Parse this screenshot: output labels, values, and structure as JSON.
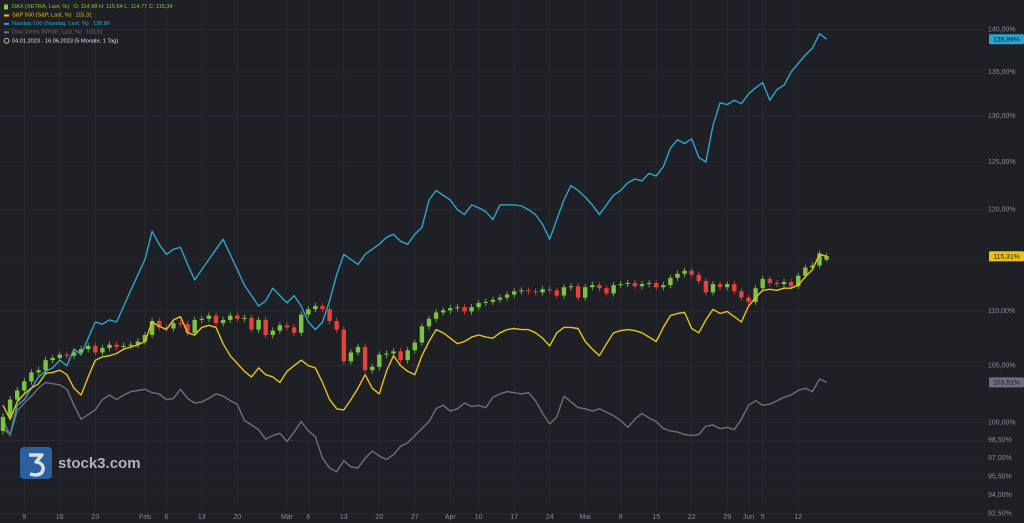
{
  "chart_data": {
    "type": "candlestick",
    "log": true,
    "grid": true,
    "ylim": [
      92.8,
      143.6
    ],
    "yticks": [
      {
        "value": 140,
        "label": "140,00%"
      },
      {
        "value": 135,
        "label": "135,00%"
      },
      {
        "value": 130,
        "label": "130,00%"
      },
      {
        "value": 125,
        "label": "125,00%"
      },
      {
        "value": 120,
        "label": "120,00%"
      },
      {
        "value": 115,
        "label": "115,00%"
      },
      {
        "value": 110,
        "label": "110,00%"
      },
      {
        "value": 105,
        "label": "105,00%"
      },
      {
        "value": 100,
        "label": "100,00%"
      },
      {
        "value": 98.5,
        "label": "98,50%"
      },
      {
        "value": 97,
        "label": "97,00%"
      },
      {
        "value": 95.5,
        "label": "95,50%"
      },
      {
        "value": 94,
        "label": "94,00%"
      },
      {
        "value": 92.5,
        "label": "92,50%"
      }
    ],
    "date_range": "04.01.2023 - 16.06.2023  (5 Monate, 1 Tag)",
    "watermark": "stock3.com",
    "categories": [
      null,
      null,
      null,
      "9",
      null,
      null,
      null,
      null,
      "16",
      null,
      null,
      null,
      null,
      "23",
      null,
      null,
      null,
      null,
      null,
      null,
      "Feb",
      null,
      null,
      "6",
      null,
      null,
      null,
      null,
      "13",
      null,
      null,
      null,
      null,
      "20",
      null,
      null,
      null,
      null,
      null,
      null,
      "Mär",
      null,
      null,
      "6",
      null,
      null,
      null,
      null,
      "13",
      null,
      null,
      null,
      null,
      "20",
      null,
      null,
      null,
      null,
      "27",
      null,
      null,
      null,
      null,
      "Apr",
      null,
      null,
      null,
      "10",
      null,
      null,
      null,
      null,
      "17",
      null,
      null,
      null,
      null,
      "24",
      null,
      null,
      null,
      null,
      "Mai",
      null,
      null,
      null,
      null,
      "8",
      null,
      null,
      null,
      null,
      "15",
      null,
      null,
      null,
      null,
      "22",
      null,
      null,
      null,
      null,
      "29",
      null,
      null,
      "Jun",
      null,
      "5",
      null,
      null,
      null,
      null,
      "12",
      null,
      null,
      null,
      null
    ],
    "candles": {
      "name": "DAX (XETRA, Last, %)",
      "ohlc_text": "O: 114,98  H: 115,64  L: 114,77  C: 115,34",
      "legend_color": "#8cc63f",
      "color_up": "#7dc242",
      "color_down": "#e8403a",
      "open": [
        99.3,
        100.5,
        102.0,
        102.8,
        103.6,
        104.4,
        104.6,
        105.5,
        105.7,
        106.0,
        105.9,
        106.2,
        106.5,
        106.8,
        106.2,
        106.6,
        106.9,
        106.7,
        106.8,
        106.9,
        107.2,
        107.8,
        109.1,
        108.5,
        108.4,
        108.9,
        108.8,
        108.0,
        109.2,
        109.3,
        109.6,
        108.9,
        109.2,
        109.6,
        109.3,
        109.4,
        108.3,
        109.2,
        107.8,
        108.2,
        108.7,
        108.5,
        108.0,
        109.7,
        110.2,
        110.5,
        110.2,
        109.1,
        108.3,
        105.4,
        106.2,
        106.7,
        104.6,
        104.9,
        106.0,
        106.1,
        106.3,
        105.5,
        106.4,
        107.1,
        108.6,
        109.3,
        109.9,
        110.1,
        110.3,
        110.4,
        110.0,
        110.4,
        110.8,
        110.9,
        111.1,
        111.3,
        111.6,
        111.9,
        112.0,
        111.9,
        111.8,
        112.1,
        112.0,
        111.5,
        112.3,
        112.4,
        111.3,
        112.3,
        112.5,
        112.2,
        111.7,
        112.5,
        112.6,
        112.7,
        112.4,
        112.6,
        112.7,
        112.3,
        112.5,
        113.2,
        113.6,
        113.9,
        113.5,
        112.9,
        111.8,
        112.6,
        112.3,
        112.6,
        111.9,
        111.3,
        110.9,
        112.2,
        113.1,
        112.7,
        112.6,
        112.8,
        112.4,
        113.4,
        114.2,
        114.4,
        114.98
      ],
      "high": [
        100.8,
        102.3,
        103.1,
        103.9,
        104.7,
        104.9,
        105.8,
        106.0,
        106.3,
        106.3,
        106.5,
        106.8,
        107.1,
        107.1,
        106.9,
        107.2,
        107.2,
        107.1,
        107.2,
        107.5,
        108.1,
        109.4,
        109.4,
        108.8,
        109.2,
        109.2,
        109.1,
        109.5,
        109.6,
        109.9,
        109.9,
        109.5,
        109.9,
        109.9,
        109.7,
        109.7,
        109.5,
        109.5,
        108.5,
        109.0,
        109.0,
        108.8,
        110.0,
        110.5,
        110.8,
        110.8,
        110.5,
        109.4,
        108.6,
        106.5,
        107.0,
        107.0,
        105.2,
        106.3,
        106.4,
        106.6,
        106.6,
        106.7,
        107.4,
        108.9,
        109.6,
        110.2,
        110.4,
        110.6,
        110.7,
        110.7,
        110.7,
        111.1,
        111.2,
        111.4,
        111.6,
        111.9,
        112.2,
        112.3,
        112.3,
        112.2,
        112.4,
        112.4,
        112.3,
        112.6,
        112.7,
        112.7,
        112.6,
        112.8,
        112.8,
        112.5,
        112.8,
        112.9,
        113.0,
        113.0,
        112.9,
        113.0,
        113.0,
        112.8,
        113.5,
        113.9,
        114.2,
        114.2,
        113.8,
        113.2,
        112.9,
        112.9,
        112.9,
        112.9,
        112.2,
        111.6,
        112.5,
        113.4,
        113.4,
        113.0,
        113.1,
        113.1,
        113.7,
        114.5,
        114.7,
        115.9,
        115.64
      ],
      "low": [
        99.0,
        100.2,
        101.7,
        102.5,
        103.3,
        104.1,
        104.3,
        105.2,
        105.4,
        105.6,
        105.6,
        105.9,
        106.2,
        105.9,
        105.9,
        106.3,
        106.4,
        106.4,
        106.5,
        106.6,
        106.9,
        107.5,
        108.2,
        108.1,
        108.1,
        108.5,
        107.7,
        107.7,
        108.9,
        109.0,
        108.6,
        108.6,
        108.9,
        109.0,
        109.0,
        108.0,
        108.0,
        107.5,
        107.5,
        107.9,
        108.2,
        107.7,
        107.7,
        109.4,
        109.9,
        109.9,
        108.8,
        108.0,
        105.1,
        105.1,
        105.9,
        104.3,
        104.3,
        104.6,
        105.7,
        105.8,
        105.2,
        105.2,
        106.1,
        106.8,
        108.3,
        109.0,
        109.6,
        109.8,
        110.0,
        109.7,
        109.7,
        110.1,
        110.5,
        110.6,
        110.8,
        111.0,
        111.3,
        111.6,
        111.6,
        111.5,
        111.5,
        111.7,
        111.2,
        111.2,
        112.0,
        111.0,
        111.0,
        112.0,
        111.9,
        111.4,
        111.4,
        112.2,
        112.3,
        112.1,
        112.1,
        112.3,
        112.0,
        112.0,
        112.2,
        112.9,
        113.3,
        113.2,
        112.6,
        111.5,
        111.5,
        112.0,
        112.0,
        111.6,
        111.0,
        110.6,
        110.6,
        111.9,
        112.4,
        112.3,
        112.3,
        112.1,
        112.1,
        113.1,
        113.9,
        114.1,
        114.77
      ],
      "close": [
        100.5,
        102.0,
        102.8,
        103.6,
        104.4,
        104.6,
        105.5,
        105.7,
        106.0,
        105.9,
        106.2,
        106.5,
        106.8,
        106.2,
        106.6,
        106.9,
        106.7,
        106.8,
        106.9,
        107.2,
        107.8,
        109.1,
        108.5,
        108.4,
        108.9,
        108.8,
        108.0,
        109.2,
        109.3,
        109.6,
        108.9,
        109.2,
        109.6,
        109.3,
        109.4,
        108.3,
        109.2,
        107.8,
        108.2,
        108.7,
        108.5,
        108.0,
        109.7,
        110.2,
        110.5,
        110.2,
        109.1,
        108.3,
        105.4,
        106.2,
        106.7,
        104.6,
        104.9,
        106.0,
        106.1,
        106.3,
        105.5,
        106.4,
        107.1,
        108.6,
        109.3,
        109.9,
        110.1,
        110.3,
        110.4,
        110.0,
        110.4,
        110.8,
        110.9,
        111.1,
        111.3,
        111.6,
        111.9,
        112.0,
        111.9,
        111.8,
        112.1,
        112.0,
        111.5,
        112.3,
        112.4,
        111.3,
        112.3,
        112.5,
        112.2,
        111.7,
        112.5,
        112.6,
        112.7,
        112.4,
        112.6,
        112.7,
        112.3,
        112.5,
        113.2,
        113.6,
        113.9,
        113.5,
        112.9,
        111.8,
        112.6,
        112.3,
        112.6,
        111.9,
        111.3,
        110.9,
        112.2,
        113.1,
        112.7,
        112.6,
        112.8,
        112.4,
        113.4,
        114.2,
        114.4,
        115.6,
        115.34
      ]
    },
    "series": [
      {
        "name": "S&P 500 (S&P, Last, %)",
        "type": "line",
        "color": "#e8c21a",
        "legend_value": "115,31",
        "badge": "115,31%",
        "values": [
          101.5,
          100.3,
          101.8,
          102.5,
          103.0,
          103.4,
          104.3,
          104.4,
          104.6,
          104.2,
          103.0,
          102.4,
          104.0,
          105.5,
          105.8,
          105.9,
          106.1,
          106.5,
          106.7,
          106.9,
          107.2,
          109.0,
          108.6,
          108.3,
          109.2,
          109.5,
          108.0,
          107.8,
          108.5,
          108.7,
          108.5,
          107.0,
          105.9,
          105.2,
          104.5,
          104.0,
          104.8,
          104.2,
          104.0,
          103.5,
          104.5,
          105.0,
          105.5,
          105.0,
          104.8,
          103.5,
          102.0,
          101.2,
          101.1,
          102.0,
          103.0,
          104.2,
          103.0,
          102.5,
          104.5,
          105.9,
          105.0,
          104.5,
          104.2,
          105.9,
          107.2,
          108.3,
          108.0,
          107.5,
          107.0,
          107.2,
          107.6,
          107.8,
          107.6,
          107.5,
          108.0,
          108.3,
          108.4,
          108.3,
          108.3,
          108.0,
          107.5,
          106.8,
          108.0,
          108.5,
          108.5,
          108.4,
          107.2,
          106.5,
          105.9,
          107.0,
          108.0,
          108.2,
          108.3,
          108.2,
          108.0,
          107.6,
          107.2,
          108.5,
          109.6,
          109.8,
          109.9,
          108.4,
          108.0,
          109.2,
          110.2,
          109.8,
          110.0,
          109.5,
          109.0,
          110.5,
          111.3,
          112.0,
          112.1,
          112.0,
          112.2,
          112.2,
          112.5,
          113.3,
          114.0,
          115.5,
          115.31
        ]
      },
      {
        "name": "Nasdaq-100 (Nasdaq, Last, %)",
        "type": "line",
        "color": "#2fa3cf",
        "legend_value": "138,86",
        "badge": "138,86%",
        "values": [
          99.5,
          99.0,
          101.5,
          102.0,
          103.0,
          104.0,
          104.5,
          104.8,
          105.5,
          105.0,
          106.5,
          106.0,
          107.5,
          109.0,
          108.8,
          109.2,
          109.0,
          110.5,
          112.0,
          113.5,
          115.0,
          117.8,
          116.5,
          115.5,
          116.0,
          116.2,
          114.5,
          113.0,
          114.0,
          115.0,
          116.0,
          117.0,
          115.5,
          114.0,
          112.5,
          111.5,
          110.5,
          111.0,
          112.2,
          111.5,
          110.8,
          111.5,
          110.5,
          109.0,
          108.3,
          109.0,
          111.0,
          113.5,
          115.5,
          115.0,
          114.5,
          115.5,
          116.0,
          116.5,
          117.2,
          117.5,
          116.8,
          116.5,
          117.5,
          118.2,
          121.0,
          122.0,
          121.5,
          121.0,
          120.0,
          119.5,
          120.5,
          120.2,
          119.8,
          119.0,
          120.5,
          120.5,
          120.5,
          120.4,
          120.0,
          119.5,
          118.5,
          117.0,
          119.0,
          121.0,
          122.5,
          122.0,
          121.3,
          120.5,
          119.5,
          120.5,
          121.5,
          122.0,
          122.8,
          123.2,
          123.0,
          123.8,
          123.5,
          124.5,
          126.5,
          127.4,
          127.0,
          127.5,
          125.5,
          125.0,
          129.0,
          131.5,
          131.3,
          131.8,
          131.4,
          132.5,
          133.2,
          133.8,
          131.8,
          133.0,
          133.5,
          135.0,
          136.0,
          137.0,
          137.8,
          139.5,
          138.86
        ]
      },
      {
        "name": "Dow Jones (NYSE, Last, %)",
        "type": "line",
        "color": "#6f6d82",
        "legend_value": "103,51",
        "badge": "103,51%",
        "values": [
          100.3,
          98.9,
          101.0,
          101.7,
          102.3,
          103.0,
          103.5,
          103.4,
          103.3,
          102.9,
          101.5,
          100.3,
          100.7,
          101.1,
          102.0,
          102.4,
          102.0,
          102.4,
          102.7,
          102.8,
          102.9,
          102.6,
          102.5,
          102.0,
          102.1,
          102.9,
          102.1,
          101.7,
          101.8,
          102.1,
          102.5,
          102.3,
          101.9,
          101.6,
          100.2,
          99.8,
          99.4,
          98.6,
          98.9,
          99.1,
          98.4,
          99.2,
          100.1,
          99.3,
          98.8,
          97.0,
          96.2,
          95.9,
          96.8,
          96.3,
          96.2,
          97.0,
          97.6,
          97.2,
          96.9,
          97.3,
          98.0,
          98.3,
          98.9,
          99.5,
          100.1,
          101.2,
          101.5,
          101.0,
          101.2,
          101.7,
          101.4,
          101.5,
          101.3,
          102.2,
          102.5,
          102.7,
          102.6,
          102.5,
          102.6,
          101.9,
          100.8,
          99.9,
          100.5,
          102.3,
          101.8,
          101.3,
          101.2,
          101.0,
          101.2,
          100.9,
          100.6,
          100.2,
          99.6,
          100.3,
          100.8,
          100.4,
          100.1,
          99.5,
          99.3,
          99.2,
          99.0,
          98.9,
          99.0,
          99.7,
          99.8,
          99.5,
          99.6,
          99.4,
          100.3,
          101.5,
          101.9,
          101.5,
          101.6,
          101.9,
          102.2,
          102.4,
          102.8,
          103.0,
          102.7,
          103.8,
          103.51
        ]
      }
    ]
  }
}
